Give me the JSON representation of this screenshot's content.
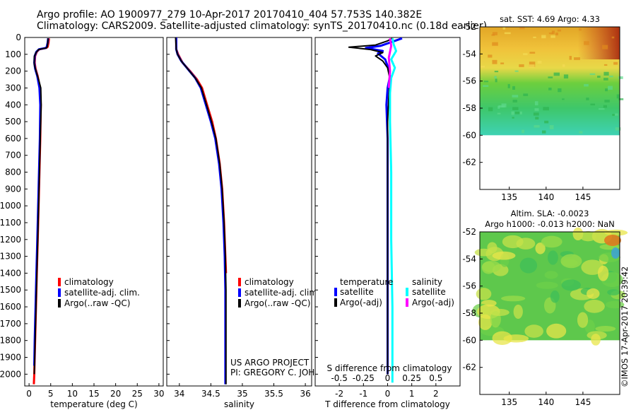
{
  "header": {
    "line1": "Argo profile: AO 1900977_279 10-Apr-2017 20170410_404 57.753S 140.382E",
    "line2": "Climatology: CARS2009. Satellite-adjusted climatology: synTS_20170410.nc (0.18d earlier)"
  },
  "colors": {
    "climatology": "#ff0000",
    "satellite": "#0000ff",
    "argo": "#000000",
    "salinity_satellite": "#00ffff",
    "salinity_argo": "#ff00ff"
  },
  "depth_axis": {
    "ticks": [
      0,
      100,
      200,
      300,
      400,
      500,
      600,
      700,
      800,
      900,
      1000,
      1100,
      1200,
      1300,
      1400,
      1500,
      1600,
      1700,
      1800,
      1900,
      2000
    ],
    "ylim": [
      0,
      2070
    ]
  },
  "chart_data": [
    {
      "id": "temperature",
      "type": "line",
      "xlabel": "temperature (deg C)",
      "xlim": [
        -1,
        31
      ],
      "xticks": [
        0,
        5,
        10,
        15,
        20,
        25,
        30
      ],
      "legend": [
        "climatology",
        "satellite-adj. clim.",
        "Argo(..raw -QC)"
      ],
      "series": [
        {
          "name": "climatology",
          "color": "red",
          "points": [
            [
              4.6,
              5
            ],
            [
              4.5,
              30
            ],
            [
              4.3,
              55
            ],
            [
              4.0,
              62
            ],
            [
              2.4,
              70
            ],
            [
              1.8,
              85
            ],
            [
              1.4,
              110
            ],
            [
              1.3,
              150
            ],
            [
              1.5,
              185
            ],
            [
              2.0,
              230
            ],
            [
              2.5,
              300
            ],
            [
              2.7,
              400
            ],
            [
              2.6,
              600
            ],
            [
              2.4,
              800
            ],
            [
              2.2,
              1000
            ],
            [
              2.0,
              1200
            ],
            [
              1.8,
              1400
            ],
            [
              1.6,
              1600
            ],
            [
              1.4,
              1800
            ],
            [
              1.2,
              2000
            ],
            [
              1.1,
              2060
            ]
          ]
        },
        {
          "name": "satellite-adj. clim.",
          "color": "blue",
          "points": [
            [
              4.4,
              5
            ],
            [
              4.3,
              30
            ],
            [
              4.1,
              55
            ],
            [
              3.9,
              62
            ],
            [
              2.3,
              70
            ],
            [
              1.7,
              85
            ],
            [
              1.3,
              110
            ],
            [
              1.2,
              150
            ],
            [
              1.4,
              185
            ],
            [
              1.9,
              230
            ],
            [
              2.4,
              300
            ],
            [
              2.6,
              400
            ],
            [
              2.5,
              600
            ],
            [
              2.3,
              800
            ],
            [
              2.1,
              1000
            ],
            [
              1.9,
              1200
            ],
            [
              1.7,
              1400
            ],
            [
              1.5,
              1600
            ],
            [
              1.3,
              1800
            ],
            [
              1.2,
              1950
            ]
          ]
        },
        {
          "name": "Argo(..raw -QC)",
          "color": "black",
          "points": [
            [
              4.4,
              5
            ],
            [
              4.3,
              30
            ],
            [
              4.2,
              55
            ],
            [
              4.0,
              62
            ],
            [
              2.2,
              72
            ],
            [
              1.6,
              90
            ],
            [
              1.2,
              115
            ],
            [
              1.2,
              160
            ],
            [
              1.6,
              200
            ],
            [
              2.2,
              250
            ],
            [
              2.7,
              300
            ],
            [
              2.8,
              400
            ],
            [
              2.6,
              600
            ],
            [
              2.4,
              800
            ],
            [
              2.2,
              1000
            ],
            [
              2.0,
              1200
            ],
            [
              1.8,
              1400
            ],
            [
              1.6,
              1600
            ],
            [
              1.4,
              1800
            ],
            [
              1.2,
              2000
            ]
          ]
        }
      ]
    },
    {
      "id": "salinity",
      "type": "line",
      "xlabel": "salinity",
      "xlim": [
        33.8,
        36.1
      ],
      "xticks": [
        34,
        34.5,
        35,
        35.5,
        36
      ],
      "legend": [
        "climatology",
        "satellite-adj. clim.",
        "Argo(..raw -QC)"
      ],
      "annotations": [
        "US ARGO PROJECT",
        "PI: GREGORY C. JOHNSON"
      ],
      "series": [
        {
          "name": "climatology",
          "color": "red",
          "points": [
            [
              33.95,
              0
            ],
            [
              33.95,
              70
            ],
            [
              33.98,
              100
            ],
            [
              34.05,
              150
            ],
            [
              34.17,
              200
            ],
            [
              34.28,
              250
            ],
            [
              34.36,
              300
            ],
            [
              34.44,
              400
            ],
            [
              34.52,
              500
            ],
            [
              34.58,
              600
            ],
            [
              34.64,
              750
            ],
            [
              34.68,
              900
            ],
            [
              34.71,
              1100
            ],
            [
              34.73,
              1300
            ],
            [
              34.74,
              1400
            ]
          ]
        },
        {
          "name": "satellite-adj. clim.",
          "color": "blue",
          "points": [
            [
              33.95,
              0
            ],
            [
              33.95,
              70
            ],
            [
              33.97,
              100
            ],
            [
              34.03,
              140
            ],
            [
              34.14,
              190
            ],
            [
              34.25,
              240
            ],
            [
              34.34,
              300
            ],
            [
              34.42,
              400
            ],
            [
              34.5,
              500
            ],
            [
              34.57,
              600
            ],
            [
              34.63,
              750
            ],
            [
              34.67,
              900
            ],
            [
              34.7,
              1100
            ],
            [
              34.72,
              1300
            ],
            [
              34.73,
              1500
            ],
            [
              34.73,
              1700
            ],
            [
              34.73,
              1900
            ],
            [
              34.73,
              2060
            ]
          ]
        },
        {
          "name": "Argo(..raw -QC)",
          "color": "black",
          "points": [
            [
              33.94,
              0
            ],
            [
              33.95,
              70
            ],
            [
              33.97,
              100
            ],
            [
              34.03,
              140
            ],
            [
              34.14,
              190
            ],
            [
              34.25,
              240
            ],
            [
              34.35,
              300
            ],
            [
              34.43,
              400
            ],
            [
              34.51,
              500
            ],
            [
              34.58,
              600
            ],
            [
              34.64,
              750
            ],
            [
              34.68,
              900
            ],
            [
              34.71,
              1100
            ],
            [
              34.73,
              1300
            ],
            [
              34.74,
              1500
            ],
            [
              34.74,
              1700
            ],
            [
              34.74,
              1900
            ],
            [
              34.74,
              2060
            ]
          ]
        }
      ]
    },
    {
      "id": "difference",
      "type": "line",
      "xlabel": "T difference from climatology",
      "xlabel_top": "S difference from climatology",
      "xlim": [
        -3,
        3
      ],
      "xticks": [
        -2,
        -1,
        0,
        1,
        2
      ],
      "xticks_top_labels": [
        "-0.5",
        "-0.25",
        "0",
        "0.25",
        "0.5"
      ],
      "legend_titles": [
        "temperature",
        "salinity"
      ],
      "legend_left": [
        "satellite",
        "Argo(-adj)"
      ],
      "legend_right": [
        "satellite",
        "Argo(-adj)"
      ],
      "series": [
        {
          "name": "T satellite",
          "color": "blue",
          "points": [
            [
              0.6,
              5
            ],
            [
              0.3,
              20
            ],
            [
              -0.3,
              50
            ],
            [
              -0.9,
              62
            ],
            [
              -0.2,
              80
            ],
            [
              -0.4,
              95
            ],
            [
              -0.1,
              130
            ],
            [
              0.0,
              170
            ],
            [
              0.1,
              230
            ],
            [
              0.0,
              300
            ],
            [
              -0.05,
              400
            ],
            [
              0.0,
              600
            ],
            [
              0.0,
              1000
            ],
            [
              0.0,
              1500
            ],
            [
              0.0,
              2000
            ]
          ]
        },
        {
          "name": "T Argo(-adj)",
          "color": "black",
          "points": [
            [
              0.2,
              5
            ],
            [
              0.0,
              20
            ],
            [
              -0.5,
              45
            ],
            [
              -1.6,
              58
            ],
            [
              -0.7,
              72
            ],
            [
              -0.2,
              90
            ],
            [
              -0.5,
              110
            ],
            [
              -0.2,
              140
            ],
            [
              0.0,
              180
            ],
            [
              0.1,
              250
            ],
            [
              0.05,
              350
            ],
            [
              0.0,
              500
            ],
            [
              0.0,
              800
            ],
            [
              0.0,
              1200
            ],
            [
              0.0,
              1600
            ],
            [
              0.0,
              2000
            ]
          ]
        },
        {
          "name": "S satellite",
          "color": "cyan",
          "points": [
            [
              0.2,
              5
            ],
            [
              0.25,
              40
            ],
            [
              0.35,
              80
            ],
            [
              0.15,
              130
            ],
            [
              0.3,
              180
            ],
            [
              0.15,
              240
            ],
            [
              0.1,
              330
            ],
            [
              0.1,
              500
            ],
            [
              0.15,
              800
            ],
            [
              0.15,
              1200
            ],
            [
              0.2,
              1600
            ],
            [
              0.2,
              2050
            ]
          ]
        },
        {
          "name": "S Argo(-adj)",
          "color": "magenta",
          "points": [
            [
              0.1,
              5
            ],
            [
              0.15,
              50
            ],
            [
              0.05,
              120
            ],
            [
              0.1,
              200
            ],
            [
              0.05,
              300
            ]
          ]
        }
      ]
    },
    {
      "id": "sst_map",
      "type": "heatmap",
      "title": "sat. SST: 4.69 Argo: 4.33",
      "xticks": [
        135,
        140,
        145
      ],
      "yticks": [
        -52,
        -54,
        -56,
        -58,
        -60,
        -62
      ],
      "xlim": [
        131,
        150
      ],
      "ylim": [
        -64,
        -52
      ],
      "data_extent": {
        "lon": [
          131,
          150
        ],
        "lat": [
          -60,
          -52
        ]
      }
    },
    {
      "id": "sla_map",
      "type": "heatmap",
      "title_line1": "Altim. SLA: -0.0023",
      "title_line2": "Argo h1000: -0.013 h2000: NaN",
      "xticks": [
        135,
        140,
        145
      ],
      "yticks": [
        -52,
        -54,
        -56,
        -58,
        -60,
        -62
      ],
      "xlim": [
        131,
        150
      ],
      "ylim": [
        -64,
        -52
      ],
      "data_extent": {
        "lon": [
          131,
          150
        ],
        "lat": [
          -60,
          -52
        ]
      }
    }
  ],
  "footer": {
    "stamp": "©IMOS 17-Apr-2017 20:39:42"
  }
}
